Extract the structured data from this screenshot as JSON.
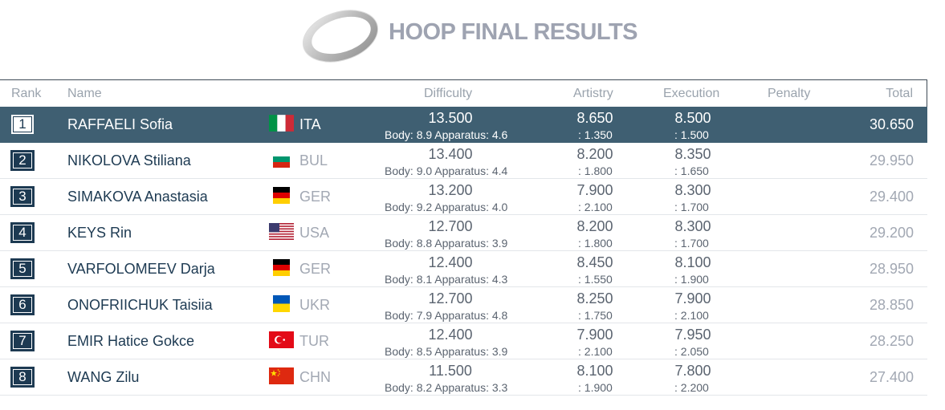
{
  "header": {
    "title": "HOOP FINAL RESULTS"
  },
  "columns": {
    "rank": "Rank",
    "name": "Name",
    "difficulty": "Difficulty",
    "artistry": "Artistry",
    "execution": "Execution",
    "penalty": "Penalty",
    "total": "Total"
  },
  "rows": [
    {
      "rank": "1",
      "name": "RAFFAELI Sofia",
      "flag": "italy-flag-icon",
      "country": "ITA",
      "difficulty": "13.500",
      "difficulty_detail": "Body: 8.9 Apparatus: 4.6",
      "artistry": "8.650",
      "artistry_detail": ": 1.350",
      "execution": "8.500",
      "execution_detail": ": 1.500",
      "penalty": "",
      "total": "30.650"
    },
    {
      "rank": "2",
      "name": "NIKOLOVA Stiliana",
      "flag": "bulgaria-flag-icon",
      "country": "BUL",
      "difficulty": "13.400",
      "difficulty_detail": "Body: 9.0 Apparatus: 4.4",
      "artistry": "8.200",
      "artistry_detail": ": 1.800",
      "execution": "8.350",
      "execution_detail": ": 1.650",
      "penalty": "",
      "total": "29.950"
    },
    {
      "rank": "3",
      "name": "SIMAKOVA Anastasia",
      "flag": "germany-flag-icon",
      "country": "GER",
      "difficulty": "13.200",
      "difficulty_detail": "Body: 9.2 Apparatus: 4.0",
      "artistry": "7.900",
      "artistry_detail": ": 2.100",
      "execution": "8.300",
      "execution_detail": ": 1.700",
      "penalty": "",
      "total": "29.400"
    },
    {
      "rank": "4",
      "name": "KEYS Rin",
      "flag": "usa-flag-icon",
      "country": "USA",
      "difficulty": "12.700",
      "difficulty_detail": "Body: 8.8 Apparatus: 3.9",
      "artistry": "8.200",
      "artistry_detail": ": 1.800",
      "execution": "8.300",
      "execution_detail": ": 1.700",
      "penalty": "",
      "total": "29.200"
    },
    {
      "rank": "5",
      "name": "VARFOLOMEEV Darja",
      "flag": "germany-flag-icon",
      "country": "GER",
      "difficulty": "12.400",
      "difficulty_detail": "Body: 8.1 Apparatus: 4.3",
      "artistry": "8.450",
      "artistry_detail": ": 1.550",
      "execution": "8.100",
      "execution_detail": ": 1.900",
      "penalty": "",
      "total": "28.950"
    },
    {
      "rank": "6",
      "name": "ONOFRIICHUK Taisiia",
      "flag": "ukraine-flag-icon",
      "country": "UKR",
      "difficulty": "12.700",
      "difficulty_detail": "Body: 7.9 Apparatus: 4.8",
      "artistry": "8.250",
      "artistry_detail": ": 1.750",
      "execution": "7.900",
      "execution_detail": ": 2.100",
      "penalty": "",
      "total": "28.850"
    },
    {
      "rank": "7",
      "name": "EMIR Hatice Gokce",
      "flag": "turkey-flag-icon",
      "country": "TUR",
      "difficulty": "12.400",
      "difficulty_detail": "Body: 8.5 Apparatus: 3.9",
      "artistry": "7.900",
      "artistry_detail": ": 2.100",
      "execution": "7.950",
      "execution_detail": ": 2.050",
      "penalty": "",
      "total": "28.250"
    },
    {
      "rank": "8",
      "name": "WANG Zilu",
      "flag": "china-flag-icon",
      "country": "CHN",
      "difficulty": "11.500",
      "difficulty_detail": "Body: 8.2 Apparatus: 3.3",
      "artistry": "8.100",
      "artistry_detail": ": 1.900",
      "execution": "7.800",
      "execution_detail": ": 2.200",
      "penalty": "",
      "total": "27.400"
    }
  ],
  "colors": {
    "highlight_row": "#3f5f72",
    "rank_box": "#1d3a52",
    "title": "#9ea3b1"
  }
}
